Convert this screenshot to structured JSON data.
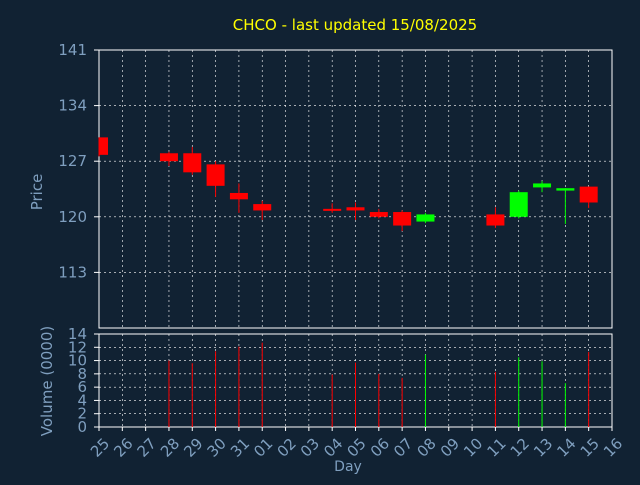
{
  "title": "CHCO - last updated 15/08/2025",
  "colors": {
    "background": "#112233",
    "axis": "#ffffff",
    "grid": "#ffffff",
    "title": "#ffff00",
    "label": "#7f9fbf",
    "up": "#00ff00",
    "down": "#ff0000"
  },
  "chart_data": [
    {
      "type": "candlestick",
      "ylabel": "Price",
      "ylim": [
        106,
        141
      ],
      "yticks": [
        113,
        120,
        127,
        134,
        141
      ],
      "grid": true,
      "categories": [
        "25",
        "26",
        "27",
        "28",
        "29",
        "30",
        "31",
        "01",
        "02",
        "03",
        "04",
        "05",
        "06",
        "07",
        "08",
        "09",
        "10",
        "11",
        "12",
        "13",
        "14",
        "15",
        "16"
      ],
      "candles": [
        {
          "day": "25",
          "open": 130.0,
          "close": 127.8,
          "high": 130.0,
          "low": 127.6
        },
        {
          "day": "28",
          "open": 128.0,
          "close": 127.0,
          "high": 128.2,
          "low": 126.4
        },
        {
          "day": "29",
          "open": 128.0,
          "close": 125.6,
          "high": 128.8,
          "low": 125.3
        },
        {
          "day": "30",
          "open": 126.6,
          "close": 123.9,
          "high": 127.0,
          "low": 122.5
        },
        {
          "day": "31",
          "open": 123.0,
          "close": 122.2,
          "high": 124.2,
          "low": 120.5
        },
        {
          "day": "01",
          "open": 121.6,
          "close": 120.8,
          "high": 122.0,
          "low": 119.6
        },
        {
          "day": "04",
          "open": 121.0,
          "close": 120.8,
          "high": 121.7,
          "low": 120.5
        },
        {
          "day": "05",
          "open": 121.2,
          "close": 120.8,
          "high": 121.8,
          "low": 119.6
        },
        {
          "day": "06",
          "open": 120.6,
          "close": 120.0,
          "high": 121.0,
          "low": 119.8
        },
        {
          "day": "07",
          "open": 120.6,
          "close": 118.9,
          "high": 120.8,
          "low": 118.2
        },
        {
          "day": "08",
          "open": 119.4,
          "close": 120.3,
          "high": 120.5,
          "low": 119.2
        },
        {
          "day": "11",
          "open": 120.3,
          "close": 118.9,
          "high": 121.2,
          "low": 118.6
        },
        {
          "day": "12",
          "open": 120.0,
          "close": 123.1,
          "high": 123.3,
          "low": 119.8
        },
        {
          "day": "13",
          "open": 123.7,
          "close": 124.2,
          "high": 124.5,
          "low": 123.1
        },
        {
          "day": "14",
          "open": 123.3,
          "close": 123.6,
          "high": 123.6,
          "low": 119.1
        },
        {
          "day": "15",
          "open": 123.8,
          "close": 121.8,
          "high": 123.8,
          "low": 121.1
        }
      ]
    },
    {
      "type": "bar",
      "ylabel": "Volume (0000)",
      "xlabel": "Day",
      "ylim": [
        0,
        14
      ],
      "yticks": [
        0,
        2,
        4,
        6,
        8,
        10,
        12,
        14
      ],
      "grid": true,
      "categories": [
        "25",
        "26",
        "27",
        "28",
        "29",
        "30",
        "31",
        "01",
        "02",
        "03",
        "04",
        "05",
        "06",
        "07",
        "08",
        "09",
        "10",
        "11",
        "12",
        "13",
        "14",
        "15",
        "16"
      ],
      "bars": [
        {
          "day": "28",
          "value": 10.0,
          "direction": "down"
        },
        {
          "day": "29",
          "value": 9.6,
          "direction": "down"
        },
        {
          "day": "30",
          "value": 11.4,
          "direction": "down"
        },
        {
          "day": "31",
          "value": 12.1,
          "direction": "down"
        },
        {
          "day": "01",
          "value": 12.7,
          "direction": "down"
        },
        {
          "day": "04",
          "value": 7.9,
          "direction": "down"
        },
        {
          "day": "05",
          "value": 9.7,
          "direction": "down"
        },
        {
          "day": "06",
          "value": 8.0,
          "direction": "down"
        },
        {
          "day": "07",
          "value": 7.4,
          "direction": "down"
        },
        {
          "day": "08",
          "value": 10.9,
          "direction": "up"
        },
        {
          "day": "11",
          "value": 8.3,
          "direction": "down"
        },
        {
          "day": "12",
          "value": 10.5,
          "direction": "up"
        },
        {
          "day": "13",
          "value": 9.9,
          "direction": "up"
        },
        {
          "day": "14",
          "value": 6.6,
          "direction": "up"
        },
        {
          "day": "15",
          "value": 11.3,
          "direction": "down"
        }
      ]
    }
  ]
}
